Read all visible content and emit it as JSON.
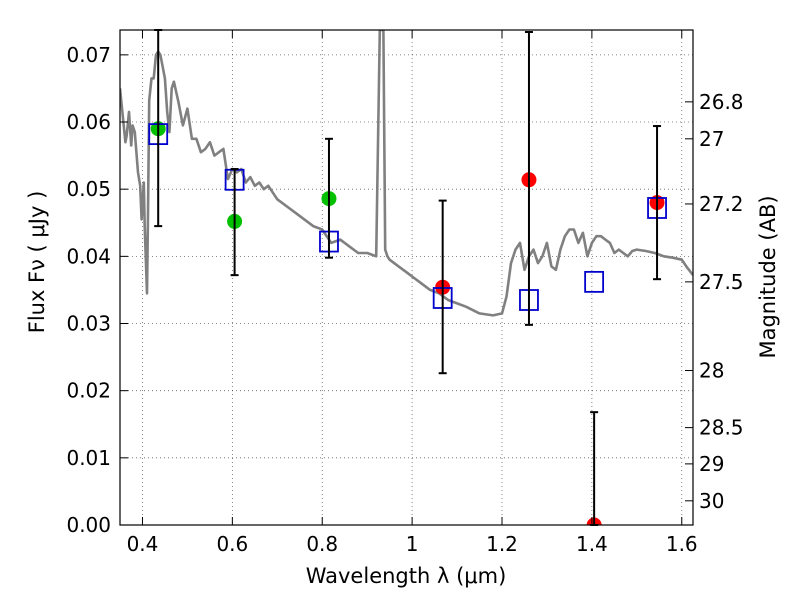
{
  "chart_data": {
    "type": "scatter",
    "xlabel": "Wavelength  λ (μm)",
    "ylabel": "Flux  Fν  ( μJy )",
    "ylabel_right": "Magnitude (AB)",
    "xlim": [
      0.35,
      1.625
    ],
    "ylim": [
      0.0,
      0.0737
    ],
    "grid": true,
    "x_ticks": [
      {
        "value": 0.4,
        "label": "0.4"
      },
      {
        "value": 0.6,
        "label": "0.6"
      },
      {
        "value": 0.8,
        "label": "0.8"
      },
      {
        "value": 1.0,
        "label": "1"
      },
      {
        "value": 1.2,
        "label": "1.2"
      },
      {
        "value": 1.4,
        "label": "1.4"
      },
      {
        "value": 1.6,
        "label": "1.6"
      }
    ],
    "y_ticks": [
      {
        "value": 0.0,
        "label": "0.00"
      },
      {
        "value": 0.01,
        "label": "0.01"
      },
      {
        "value": 0.02,
        "label": "0.02"
      },
      {
        "value": 0.03,
        "label": "0.03"
      },
      {
        "value": 0.04,
        "label": "0.04"
      },
      {
        "value": 0.05,
        "label": "0.05"
      },
      {
        "value": 0.06,
        "label": "0.06"
      },
      {
        "value": 0.07,
        "label": "0.07"
      }
    ],
    "mag_ticks": [
      {
        "flux": 0.063,
        "label": "26.8"
      },
      {
        "flux": 0.0575,
        "label": "27"
      },
      {
        "flux": 0.0478,
        "label": "27.2"
      },
      {
        "flux": 0.0362,
        "label": "27.5"
      },
      {
        "flux": 0.023,
        "label": "28"
      },
      {
        "flux": 0.0145,
        "label": "28.5"
      },
      {
        "flux": 0.0091,
        "label": "29"
      },
      {
        "flux": 0.0036,
        "label": "30"
      }
    ],
    "colors": {
      "spectrum": "#808080",
      "green_points": "#00c000",
      "red_points": "#ff0000",
      "model_squares": "#0000cc",
      "errorbars": "#000000"
    },
    "series": [
      {
        "kind": "line",
        "x": [
          0.35,
          0.356,
          0.362,
          0.365,
          0.37,
          0.375,
          0.378,
          0.383,
          0.39,
          0.395,
          0.398,
          0.403,
          0.405,
          0.41,
          0.412,
          0.415,
          0.42,
          0.425,
          0.43,
          0.435,
          0.44,
          0.45,
          0.455,
          0.46,
          0.465,
          0.47,
          0.48,
          0.49,
          0.5,
          0.51,
          0.52,
          0.53,
          0.54,
          0.55,
          0.56,
          0.57,
          0.58,
          0.59,
          0.6,
          0.61,
          0.62,
          0.63,
          0.64,
          0.65,
          0.66,
          0.67,
          0.68,
          0.7,
          0.72,
          0.74,
          0.76,
          0.78,
          0.8,
          0.82,
          0.84,
          0.86,
          0.88,
          0.9,
          0.92,
          0.928,
          0.932,
          0.936,
          0.94,
          0.945,
          0.95,
          0.97,
          0.99,
          1.0,
          1.02,
          1.04,
          1.06,
          1.08,
          1.1,
          1.12,
          1.15,
          1.18,
          1.2,
          1.21,
          1.22,
          1.23,
          1.24,
          1.25,
          1.26,
          1.27,
          1.28,
          1.29,
          1.3,
          1.31,
          1.32,
          1.33,
          1.34,
          1.35,
          1.36,
          1.37,
          1.38,
          1.39,
          1.4,
          1.41,
          1.42,
          1.43,
          1.44,
          1.45,
          1.46,
          1.47,
          1.48,
          1.49,
          1.5,
          1.52,
          1.54,
          1.56,
          1.58,
          1.6,
          1.61,
          1.625
        ],
        "y": [
          0.065,
          0.061,
          0.057,
          0.058,
          0.0615,
          0.0565,
          0.0595,
          0.0585,
          0.0525,
          0.0505,
          0.0455,
          0.051,
          0.0445,
          0.0345,
          0.045,
          0.0632,
          0.0665,
          0.0665,
          0.07,
          0.0705,
          0.07,
          0.0665,
          0.0615,
          0.0585,
          0.065,
          0.066,
          0.063,
          0.0595,
          0.062,
          0.0575,
          0.0575,
          0.0555,
          0.056,
          0.057,
          0.055,
          0.0555,
          0.056,
          0.0515,
          0.053,
          0.0525,
          0.053,
          0.051,
          0.0518,
          0.0505,
          0.051,
          0.05,
          0.0505,
          0.0485,
          0.0475,
          0.0465,
          0.0455,
          0.0445,
          0.044,
          0.042,
          0.0425,
          0.0415,
          0.0405,
          0.0405,
          0.04,
          0.0737,
          0.0737,
          0.0737,
          0.041,
          0.04,
          0.0395,
          0.0385,
          0.0375,
          0.037,
          0.036,
          0.035,
          0.0345,
          0.0335,
          0.033,
          0.0325,
          0.0315,
          0.0312,
          0.0315,
          0.034,
          0.039,
          0.041,
          0.042,
          0.038,
          0.04,
          0.041,
          0.039,
          0.04,
          0.042,
          0.0385,
          0.038,
          0.041,
          0.043,
          0.044,
          0.044,
          0.042,
          0.0435,
          0.04,
          0.042,
          0.043,
          0.043,
          0.0425,
          0.042,
          0.0405,
          0.041,
          0.0405,
          0.04,
          0.0408,
          0.041,
          0.0408,
          0.0405,
          0.04,
          0.0398,
          0.0395,
          0.0385,
          0.0372
        ]
      },
      {
        "kind": "points",
        "color": "green",
        "x": [
          0.435,
          0.605,
          0.815
        ],
        "y": [
          0.059,
          0.0452,
          0.0486
        ]
      },
      {
        "kind": "points",
        "color": "red",
        "x": [
          1.068,
          1.26,
          1.405,
          1.545
        ],
        "y": [
          0.0354,
          0.0514,
          0.0,
          0.048
        ]
      },
      {
        "kind": "squares",
        "color": "blue",
        "x": [
          0.435,
          0.605,
          0.815,
          1.068,
          1.26,
          1.405,
          1.545
        ],
        "y": [
          0.0582,
          0.0514,
          0.0422,
          0.0338,
          0.0335,
          0.0362,
          0.0472
        ]
      },
      {
        "kind": "errorbars",
        "x": [
          0.435,
          0.605,
          0.815,
          1.068,
          1.26,
          1.405,
          1.545
        ],
        "low": [
          0.0445,
          0.0372,
          0.0398,
          0.0226,
          0.0298,
          0.0,
          0.0366
        ],
        "high": [
          0.0737,
          0.053,
          0.0575,
          0.0483,
          0.0734,
          0.0168,
          0.0594
        ]
      }
    ]
  }
}
